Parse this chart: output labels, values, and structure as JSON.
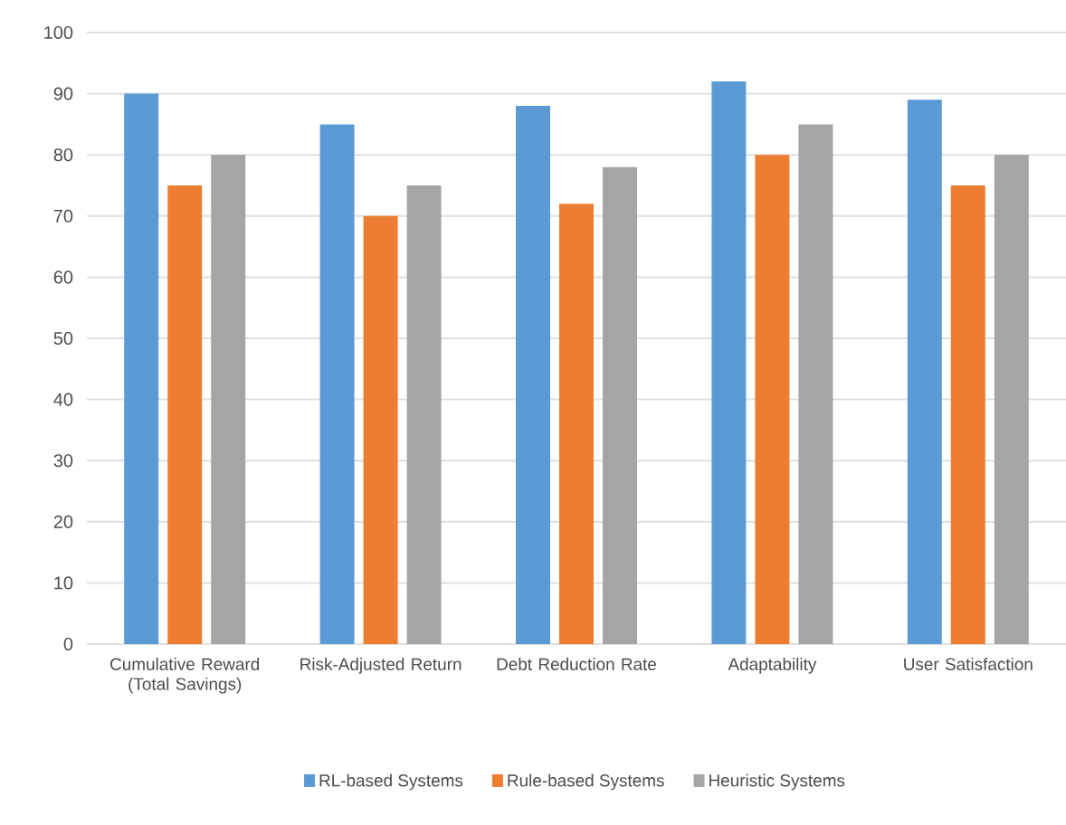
{
  "chart_data": {
    "type": "bar",
    "categories": [
      "Cumulative Reward (Total Savings)",
      "Risk-Adjusted Return",
      "Debt Reduction Rate",
      "Adaptability",
      "User Satisfaction"
    ],
    "series": [
      {
        "name": "RL-based Systems",
        "color": "#5b9bd5",
        "values": [
          90,
          85,
          88,
          92,
          89
        ]
      },
      {
        "name": "Rule-based Systems",
        "color": "#ed7d31",
        "values": [
          75,
          70,
          72,
          80,
          75
        ]
      },
      {
        "name": "Heuristic Systems",
        "color": "#a5a5a5",
        "values": [
          80,
          75,
          78,
          85,
          80
        ]
      }
    ],
    "ylim": [
      0,
      100
    ],
    "yticks": [
      0,
      10,
      20,
      30,
      40,
      50,
      60,
      70,
      80,
      90,
      100
    ],
    "grid": "y",
    "legend": "bottom"
  }
}
